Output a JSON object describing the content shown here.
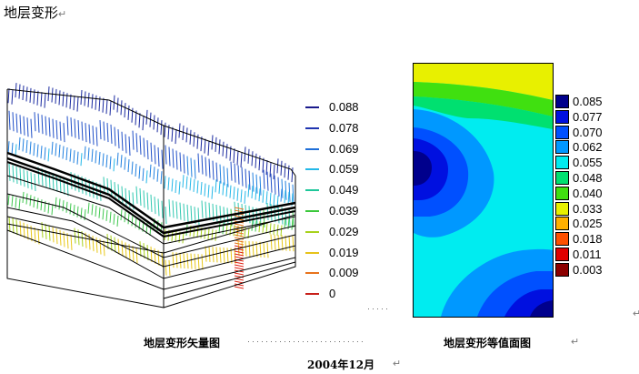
{
  "title": "地层变形",
  "paragraph_mark": "↵",
  "legend_left": {
    "items": [
      {
        "label": "0.088",
        "color": "#1a1a8c"
      },
      {
        "label": "0.078",
        "color": "#2035b0"
      },
      {
        "label": "0.069",
        "color": "#1f6fd8"
      },
      {
        "label": "0.059",
        "color": "#24b8e8"
      },
      {
        "label": "0.049",
        "color": "#1fc79a"
      },
      {
        "label": "0.039",
        "color": "#3cc83c"
      },
      {
        "label": "0.029",
        "color": "#a8d21c"
      },
      {
        "label": "0.019",
        "color": "#e6c21a"
      },
      {
        "label": "0.009",
        "color": "#e8731c"
      },
      {
        "label": "0",
        "color": "#c8201a"
      }
    ]
  },
  "colorbar": {
    "items": [
      {
        "label": "0.085",
        "color": "#00008c"
      },
      {
        "label": "0.077",
        "color": "#0010e0"
      },
      {
        "label": "0.070",
        "color": "#0050ff"
      },
      {
        "label": "0.062",
        "color": "#0098ff"
      },
      {
        "label": "0.055",
        "color": "#00ecf0"
      },
      {
        "label": "0.048",
        "color": "#00e070"
      },
      {
        "label": "0.040",
        "color": "#40e010"
      },
      {
        "label": "0.033",
        "color": "#e8f000"
      },
      {
        "label": "0.025",
        "color": "#ffb000"
      },
      {
        "label": "0.018",
        "color": "#ff5000"
      },
      {
        "label": "0.011",
        "color": "#e00000"
      },
      {
        "label": "0.003",
        "color": "#8c0000"
      }
    ]
  },
  "captions": {
    "left": "地层变形矢量图",
    "right": "地层变形等值面图",
    "date": "2004年12月"
  },
  "dot_leader_left": "·····",
  "dot_leader_mid": "··························"
}
